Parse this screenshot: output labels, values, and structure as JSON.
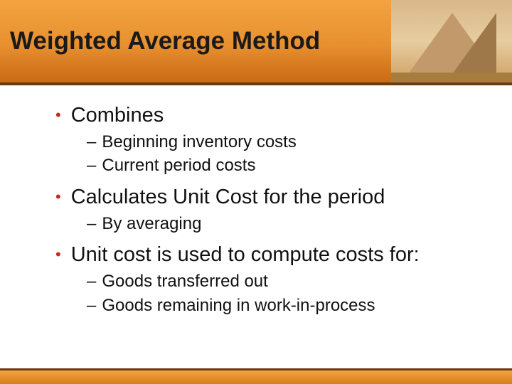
{
  "header": {
    "title": "Weighted Average Method"
  },
  "bullets": [
    {
      "text": "Combines",
      "sub": [
        "Beginning inventory costs",
        "Current period costs"
      ]
    },
    {
      "text": "Calculates Unit Cost for the period",
      "sub": [
        "By averaging"
      ]
    },
    {
      "text": "Unit cost is used to compute costs for:",
      "sub": [
        "Goods transferred out",
        "Goods remaining in work-in-process"
      ]
    }
  ],
  "colors": {
    "bullet_dot": "#c03020",
    "header_gradient_top": "#f2a340",
    "header_gradient_bottom": "#c86a14",
    "divider": "#6b3a10",
    "text": "#111111"
  }
}
